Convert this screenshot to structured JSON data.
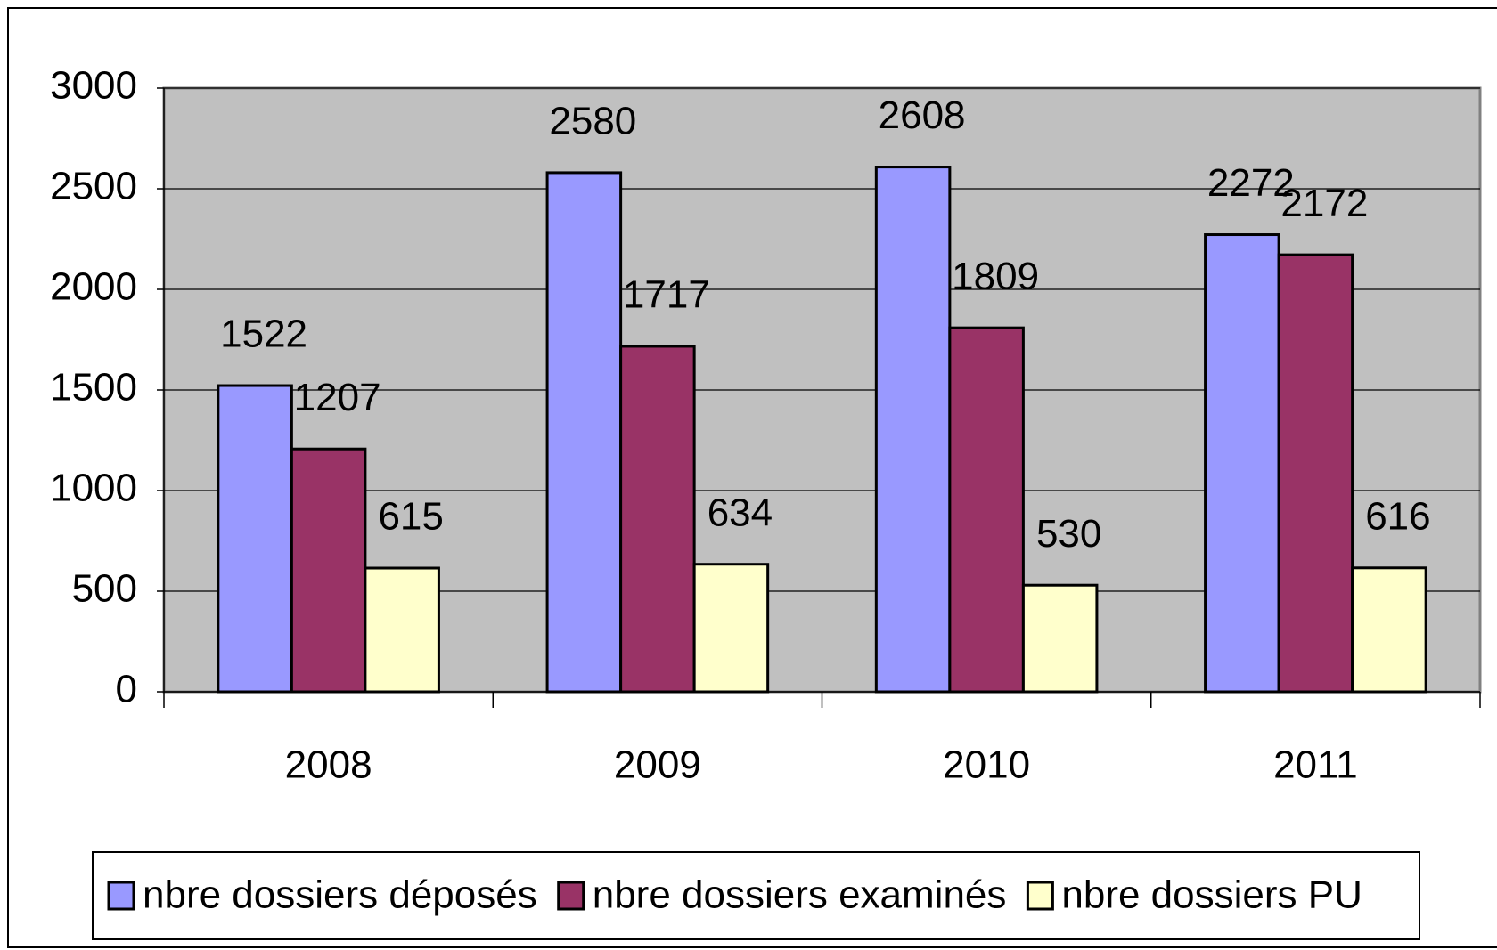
{
  "chart_data": {
    "type": "bar",
    "categories": [
      "2008",
      "2009",
      "2010",
      "2011"
    ],
    "series": [
      {
        "name": "nbre dossiers déposés",
        "color": "#9999ff",
        "values": [
          1522,
          2580,
          2608,
          2272
        ]
      },
      {
        "name": "nbre dossiers examinés",
        "color": "#993366",
        "values": [
          1207,
          1717,
          1809,
          2172
        ]
      },
      {
        "name": "nbre dossiers PU",
        "color": "#ffffcc",
        "values": [
          615,
          634,
          530,
          616
        ]
      }
    ],
    "ylim": [
      0,
      3000
    ],
    "yticks": [
      0,
      500,
      1000,
      1500,
      2000,
      2500,
      3000
    ],
    "grid": true,
    "legend": "bottom"
  }
}
